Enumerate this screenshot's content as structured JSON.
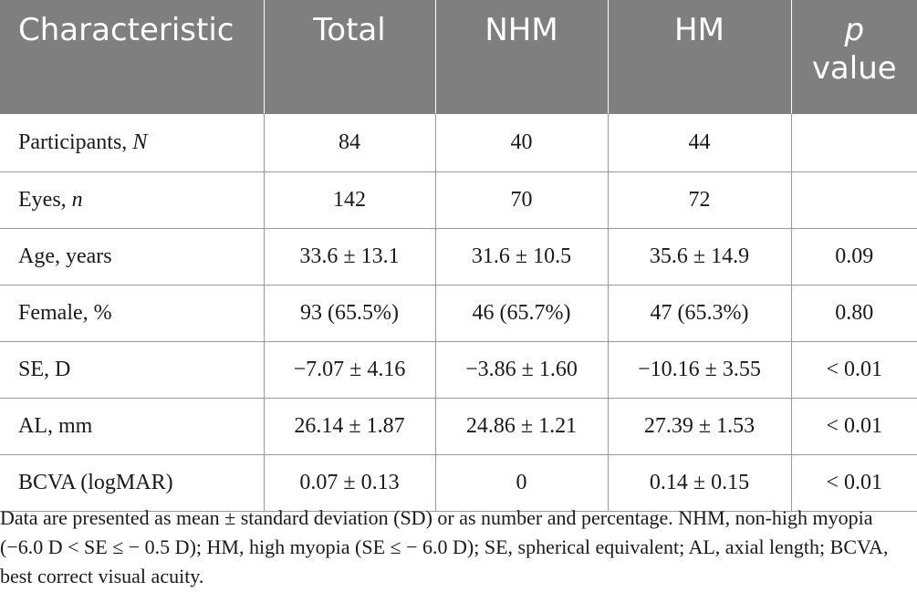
{
  "table": {
    "headers": [
      "Characteristic",
      "Total",
      "NHM",
      "HM"
    ],
    "p_header": {
      "italic": "p",
      "rest": "value"
    },
    "rows": [
      {
        "label": "Participants, ",
        "label_italic": "N",
        "total": "84",
        "nhm": "40",
        "hm": "44",
        "p": ""
      },
      {
        "label": "Eyes, ",
        "label_italic": "n",
        "total": "142",
        "nhm": "70",
        "hm": "72",
        "p": ""
      },
      {
        "label": "Age, years",
        "label_italic": "",
        "total": "33.6 ± 13.1",
        "nhm": "31.6 ± 10.5",
        "hm": "35.6 ± 14.9",
        "p": "0.09"
      },
      {
        "label": "Female, %",
        "label_italic": "",
        "total": "93 (65.5%)",
        "nhm": "46 (65.7%)",
        "hm": "47 (65.3%)",
        "p": "0.80"
      },
      {
        "label": "SE, D",
        "label_italic": "",
        "total": "−7.07 ± 4.16",
        "nhm": "−3.86 ± 1.60",
        "hm": "−10.16 ± 3.55",
        "p": "< 0.01"
      },
      {
        "label": "AL, mm",
        "label_italic": "",
        "total": "26.14 ± 1.87",
        "nhm": "24.86 ± 1.21",
        "hm": "27.39 ± 1.53",
        "p": "< 0.01"
      },
      {
        "label": "BCVA (logMAR)",
        "label_italic": "",
        "total": "0.07 ± 0.13",
        "nhm": "0",
        "hm": "0.14 ± 0.15",
        "p": "< 0.01"
      }
    ]
  },
  "footnote": "Data are presented as mean ± standard deviation (SD) or as number and percentage. NHM, non-high myopia (−6.0 D < SE ≤ − 0.5 D); HM, high myopia (SE ≤ − 6.0 D); SE, spherical equivalent; AL, axial length; BCVA, best correct visual acuity.",
  "colors": {
    "header_bg": "#7f7f7f",
    "header_text": "#ffffff",
    "rule": "#9a9a9a"
  }
}
